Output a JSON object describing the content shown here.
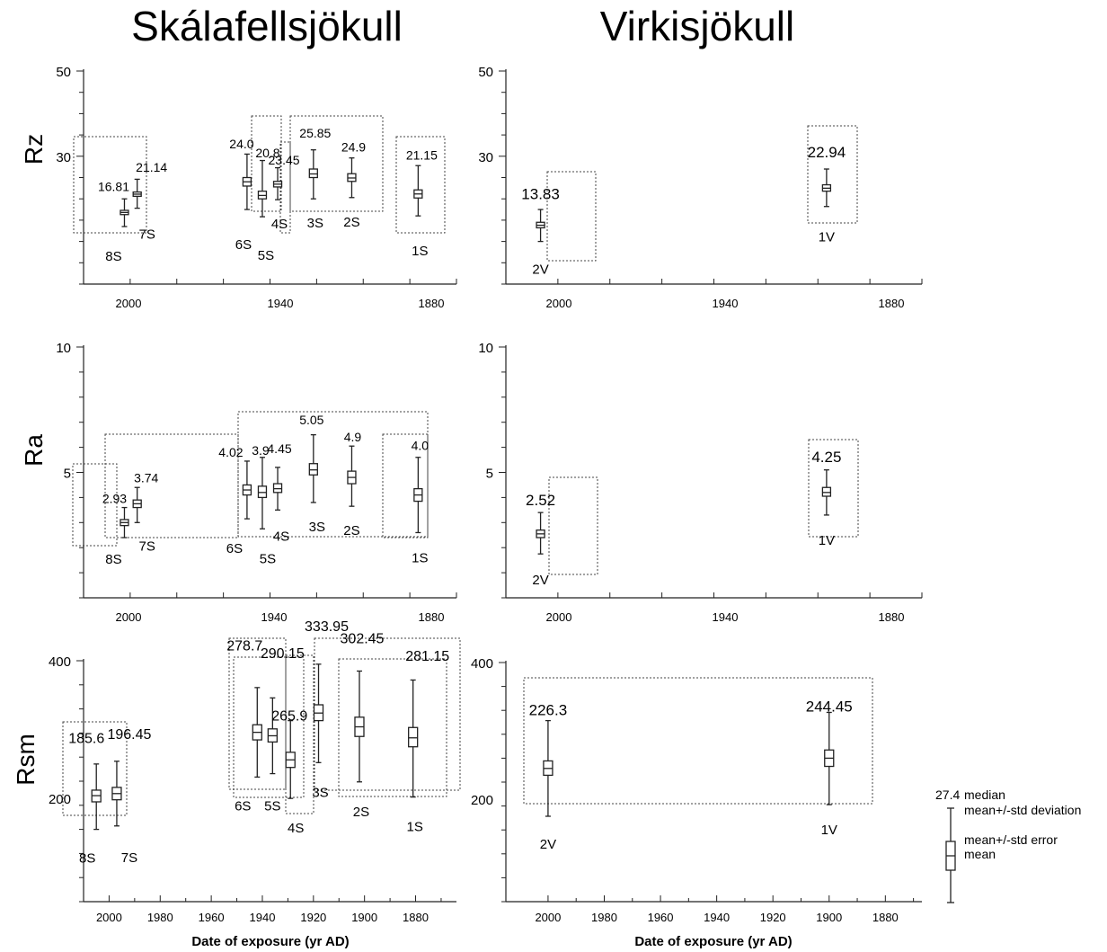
{
  "figure": {
    "x_axis_label": "Date of exposure (yr AD)",
    "legend": {
      "value": "27.4",
      "median": "median",
      "std_dev": "mean+/-std deviation",
      "std_err": "mean+/-std error",
      "mean": "mean"
    }
  },
  "chart_data": [
    {
      "type": "box",
      "title": "Skálafellsjökull",
      "ylabel": "Rz",
      "xlim": [
        2010,
        1864
      ],
      "ylim": [
        0,
        50
      ],
      "yticks": [
        30,
        50
      ],
      "xticks": [
        2000,
        1940,
        1880
      ],
      "xlabel": "",
      "series": [
        {
          "name": "8S",
          "x": 1994,
          "label": "16.81",
          "mean": 16.8,
          "se_low": 16.3,
          "se_high": 17.3,
          "sd_low": 13.5,
          "sd_high": 20.0
        },
        {
          "name": "7S",
          "x": 1989,
          "label": "21.14",
          "mean": 21.1,
          "se_low": 20.6,
          "se_high": 21.6,
          "sd_low": 17.8,
          "sd_high": 24.6
        },
        {
          "name": "6S",
          "x": 1946,
          "label": "24.0",
          "mean": 24.0,
          "se_low": 23.0,
          "se_high": 25.0,
          "sd_low": 17.5,
          "sd_high": 30.5
        },
        {
          "name": "5S",
          "x": 1940,
          "label": "20.8",
          "mean": 20.8,
          "se_low": 20.0,
          "se_high": 21.8,
          "sd_low": 15.8,
          "sd_high": 29.0
        },
        {
          "name": "4S",
          "x": 1934,
          "label": "23.45",
          "mean": 23.45,
          "se_low": 22.8,
          "se_high": 24.1,
          "sd_low": 19.8,
          "sd_high": 27.3
        },
        {
          "name": "3S",
          "x": 1920,
          "label": "25.85",
          "mean": 25.85,
          "se_low": 25.0,
          "se_high": 27.0,
          "sd_low": 20.0,
          "sd_high": 31.5
        },
        {
          "name": "2S",
          "x": 1905,
          "label": "24.9",
          "mean": 24.9,
          "se_low": 24.1,
          "se_high": 25.9,
          "sd_low": 20.3,
          "sd_high": 29.6
        },
        {
          "name": "1S",
          "x": 1879,
          "label": "21.15",
          "mean": 21.15,
          "se_low": 20.2,
          "se_high": 22.1,
          "sd_low": 16.0,
          "sd_high": 27.8
        }
      ]
    },
    {
      "type": "box",
      "title": "Virkisjökull",
      "ylabel": "",
      "xlim": [
        2011,
        1867
      ],
      "ylim": [
        0,
        50
      ],
      "yticks": [
        30,
        50
      ],
      "xticks": [
        2000,
        1940,
        1880
      ],
      "xlabel": "",
      "series": [
        {
          "name": "2V",
          "x": 1999,
          "label": "13.83",
          "mean": 13.8,
          "se_low": 13.2,
          "se_high": 14.5,
          "sd_low": 10.0,
          "sd_high": 17.5
        },
        {
          "name": "1V",
          "x": 1900,
          "label": "22.94",
          "mean": 22.5,
          "se_low": 21.8,
          "se_high": 23.3,
          "sd_low": 18.2,
          "sd_high": 27.0
        }
      ]
    },
    {
      "type": "box",
      "title": "",
      "ylabel": "Ra",
      "xlim": [
        2010,
        1864
      ],
      "ylim": [
        0,
        10
      ],
      "yticks": [
        5,
        10
      ],
      "xticks": [
        2000,
        1940,
        1880
      ],
      "xlabel": "",
      "series": [
        {
          "name": "8S",
          "x": 1994,
          "label": "2.93",
          "mean": 3.0,
          "se_low": 2.88,
          "se_high": 3.12,
          "sd_low": 2.4,
          "sd_high": 3.6
        },
        {
          "name": "7S",
          "x": 1989,
          "label": "3.74",
          "mean": 3.75,
          "se_low": 3.6,
          "se_high": 3.9,
          "sd_low": 3.0,
          "sd_high": 4.4
        },
        {
          "name": "6S",
          "x": 1946,
          "label": "4.02",
          "mean": 4.3,
          "se_low": 4.1,
          "se_high": 4.5,
          "sd_low": 3.15,
          "sd_high": 5.45
        },
        {
          "name": "5S",
          "x": 1940,
          "label": "3.9",
          "mean": 4.2,
          "se_low": 4.0,
          "se_high": 4.45,
          "sd_low": 2.75,
          "sd_high": 5.6
        },
        {
          "name": "4S",
          "x": 1934,
          "label": "4.45",
          "mean": 4.35,
          "se_low": 4.2,
          "se_high": 4.55,
          "sd_low": 3.5,
          "sd_high": 5.2
        },
        {
          "name": "3S",
          "x": 1920,
          "label": "5.05",
          "mean": 5.1,
          "se_low": 4.9,
          "se_high": 5.35,
          "sd_low": 3.8,
          "sd_high": 6.5
        },
        {
          "name": "2S",
          "x": 1905,
          "label": "4.9",
          "mean": 4.8,
          "se_low": 4.55,
          "se_high": 5.05,
          "sd_low": 3.65,
          "sd_high": 6.05
        },
        {
          "name": "1S",
          "x": 1879,
          "label": "4.0",
          "mean": 4.1,
          "se_low": 3.85,
          "se_high": 4.35,
          "sd_low": 2.6,
          "sd_high": 5.6
        }
      ]
    },
    {
      "type": "box",
      "title": "",
      "ylabel": "",
      "xlim": [
        2011,
        1867
      ],
      "ylim": [
        0,
        10
      ],
      "yticks": [
        5,
        10
      ],
      "xticks": [
        2000,
        1940,
        1880
      ],
      "xlabel": "",
      "series": [
        {
          "name": "2V",
          "x": 1999,
          "label": "2.52",
          "mean": 2.55,
          "se_low": 2.4,
          "se_high": 2.7,
          "sd_low": 1.75,
          "sd_high": 3.4
        },
        {
          "name": "1V",
          "x": 1900,
          "label": "4.25",
          "mean": 4.2,
          "se_low": 4.05,
          "se_high": 4.4,
          "sd_low": 3.3,
          "sd_high": 5.1
        }
      ]
    },
    {
      "type": "box",
      "title": "",
      "ylabel": "Rsm",
      "xlim": [
        2010,
        1864
      ],
      "ylim": [
        50,
        400
      ],
      "yticks": [
        200,
        400
      ],
      "xticks": [
        2000,
        1980,
        1960,
        1940,
        1920,
        1900,
        1880
      ],
      "xlabel": "Date of exposure (yr AD)",
      "series": [
        {
          "name": "8S",
          "x": 2005,
          "label": "185.6",
          "mean": 204,
          "se_low": 195,
          "se_high": 212,
          "sd_low": 155,
          "sd_high": 250
        },
        {
          "name": "7S",
          "x": 1997,
          "label": "196.45",
          "mean": 207,
          "se_low": 198,
          "se_high": 216,
          "sd_low": 160,
          "sd_high": 254
        },
        {
          "name": "6S",
          "x": 1942,
          "label": "278.7",
          "mean": 296,
          "se_low": 285,
          "se_high": 307,
          "sd_low": 231,
          "sd_high": 361
        },
        {
          "name": "5S",
          "x": 1936,
          "label": "290.15",
          "mean": 291,
          "se_low": 282,
          "se_high": 301,
          "sd_low": 236,
          "sd_high": 346
        },
        {
          "name": "4S",
          "x": 1929,
          "label": "265.9",
          "mean": 256,
          "se_low": 245,
          "se_high": 267,
          "sd_low": 200,
          "sd_high": 313
        },
        {
          "name": "3S",
          "x": 1918,
          "label": "333.95",
          "mean": 324,
          "se_low": 313,
          "se_high": 336,
          "sd_low": 252,
          "sd_high": 395
        },
        {
          "name": "2S",
          "x": 1902,
          "label": "302.45",
          "mean": 304,
          "se_low": 290,
          "se_high": 318,
          "sd_low": 224,
          "sd_high": 385
        },
        {
          "name": "1S",
          "x": 1881,
          "label": "281.15",
          "mean": 288,
          "se_low": 275,
          "se_high": 303,
          "sd_low": 202,
          "sd_high": 372
        }
      ]
    },
    {
      "type": "box",
      "title": "",
      "ylabel": "",
      "xlim": [
        2015,
        1867
      ],
      "ylim": [
        50,
        400
      ],
      "yticks": [
        200,
        400
      ],
      "xticks": [
        2000,
        1980,
        1960,
        1940,
        1920,
        1900,
        1880
      ],
      "xlabel": "Date of exposure (yr AD)",
      "series": [
        {
          "name": "2V",
          "x": 2000,
          "label": "226.3",
          "mean": 245,
          "se_low": 235,
          "se_high": 256,
          "sd_low": 175,
          "sd_high": 315
        },
        {
          "name": "1V",
          "x": 1900,
          "label": "244.45",
          "mean": 260,
          "se_low": 248,
          "se_high": 272,
          "sd_low": 192,
          "sd_high": 327
        }
      ]
    }
  ]
}
